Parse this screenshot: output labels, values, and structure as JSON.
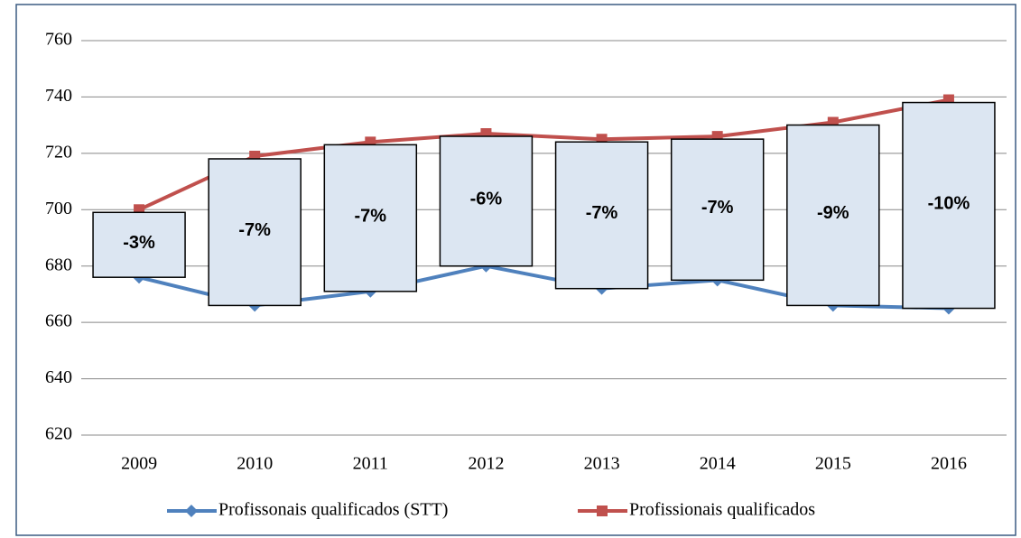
{
  "chart_data": {
    "type": "line",
    "categories": [
      "2009",
      "2010",
      "2011",
      "2012",
      "2013",
      "2014",
      "2015",
      "2016"
    ],
    "series": [
      {
        "name": "Profissonais qualificados (STT)",
        "color": "#4f81bd",
        "marker": "diamond",
        "values": [
          676,
          666,
          671,
          680,
          672,
          675,
          666,
          665
        ]
      },
      {
        "name": "Profissionais qualificados",
        "color": "#c0504d",
        "marker": "square",
        "values": [
          700,
          719,
          724,
          727,
          725,
          726,
          731,
          739
        ]
      }
    ],
    "gap_labels": [
      "-3%",
      "-7%",
      "-7%",
      "-6%",
      "-7%",
      "-7%",
      "-9%",
      "-10%"
    ],
    "ylim": [
      620,
      760
    ],
    "yticks": [
      620,
      640,
      660,
      680,
      700,
      720,
      740,
      760
    ],
    "grid": true,
    "legend": "bottom"
  }
}
